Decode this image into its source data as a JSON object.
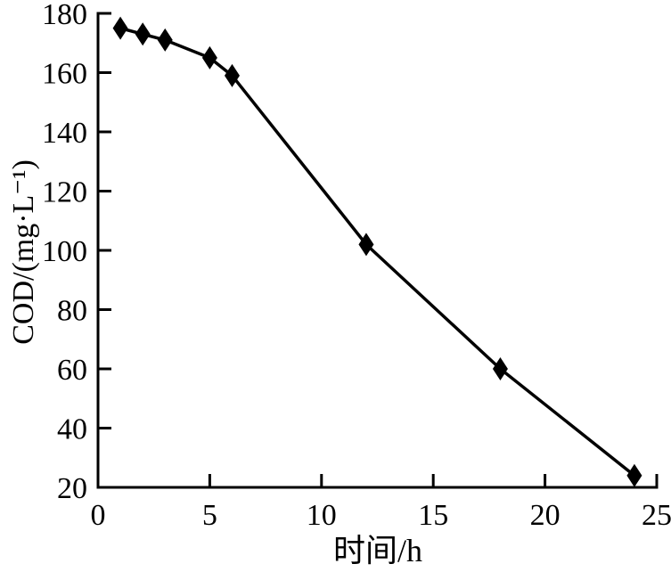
{
  "figure": {
    "background": "#ffffff"
  },
  "chart_data": {
    "type": "line",
    "title": "",
    "xlabel": "时间/h",
    "ylabel": "COD/(mg·L⁻¹)",
    "x": [
      1,
      2,
      3,
      5,
      6,
      12,
      18,
      24
    ],
    "y": [
      175,
      173,
      171,
      165,
      159,
      102,
      60,
      24
    ],
    "xlim": [
      0,
      25
    ],
    "ylim": [
      20,
      180
    ],
    "x_ticks": [
      0,
      5,
      10,
      15,
      20,
      25
    ],
    "y_ticks": [
      20,
      40,
      60,
      80,
      100,
      120,
      140,
      160,
      180
    ],
    "grid": false,
    "legend": false,
    "marker": "diamond",
    "line_color": "#000000",
    "marker_color": "#000000",
    "axis_color": "#000000",
    "text_color": "#000000",
    "tick_label_font_size": 34
  }
}
